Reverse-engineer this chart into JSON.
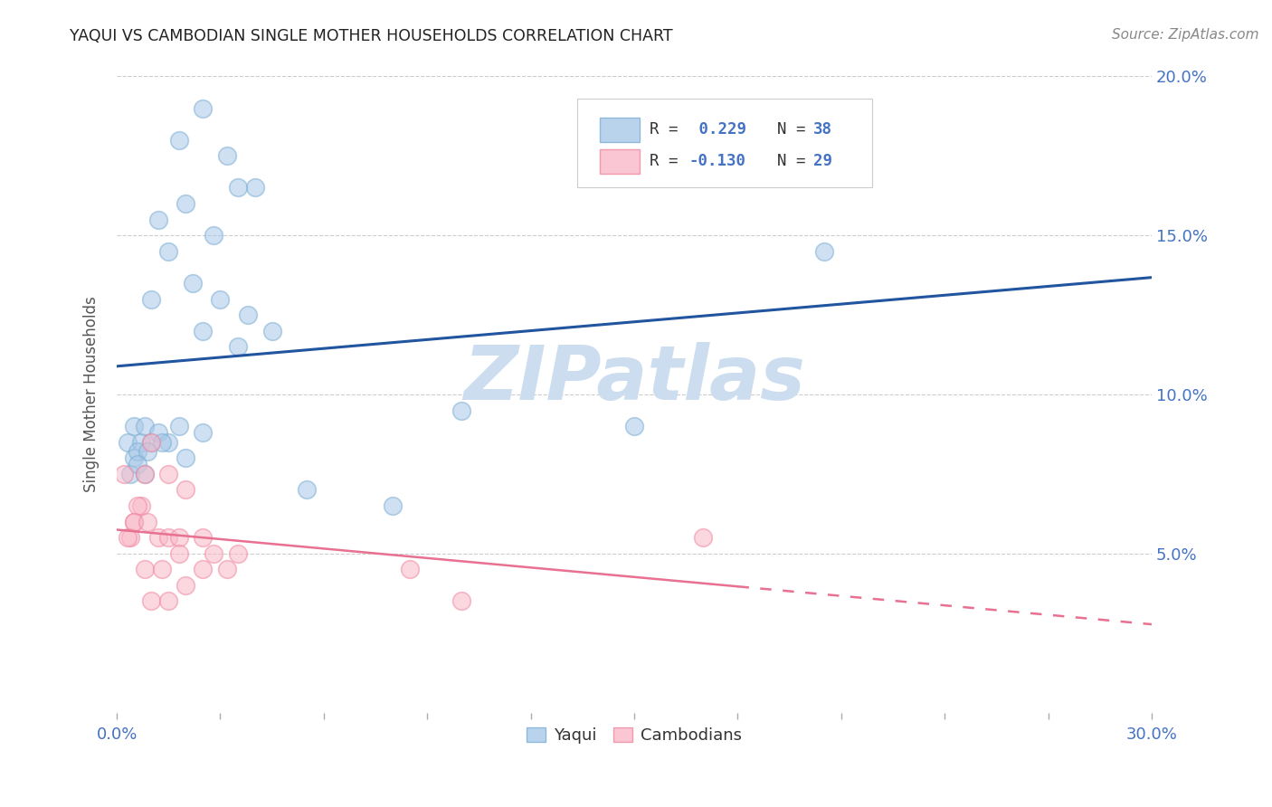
{
  "title": "YAQUI VS CAMBODIAN SINGLE MOTHER HOUSEHOLDS CORRELATION CHART",
  "source": "Source: ZipAtlas.com",
  "ylabel": "Single Mother Households",
  "yaqui_R": 0.229,
  "yaqui_N": 38,
  "cambodian_R": -0.13,
  "cambodian_N": 29,
  "x_min": 0.0,
  "x_max": 30.0,
  "y_min": 0.0,
  "y_max": 20.0,
  "yticks": [
    5.0,
    10.0,
    15.0,
    20.0
  ],
  "xticks_labels": [
    "0.0%",
    "30.0%"
  ],
  "xticks_vals": [
    0.0,
    30.0
  ],
  "blue_color": "#a8c8e8",
  "blue_edge": "#7baed4",
  "pink_color": "#f9b8c8",
  "pink_edge": "#f087a0",
  "trend_blue": "#2155a0",
  "trend_pink": "#e87090",
  "yaqui_x": [
    0.5,
    1.8,
    2.5,
    3.2,
    4.0,
    1.2,
    2.0,
    2.8,
    3.5,
    1.5,
    2.2,
    3.0,
    3.8,
    1.0,
    2.5,
    3.5,
    4.5,
    0.3,
    0.7,
    0.5,
    0.8,
    1.0,
    1.2,
    0.6,
    0.9,
    1.5,
    2.0,
    1.3,
    1.8,
    2.5,
    0.4,
    0.6,
    0.8,
    5.5,
    8.0,
    10.0,
    15.0,
    20.5
  ],
  "yaqui_y": [
    9.0,
    18.0,
    19.0,
    17.5,
    16.5,
    15.5,
    16.0,
    15.0,
    16.5,
    14.5,
    13.5,
    13.0,
    12.5,
    13.0,
    12.0,
    11.5,
    12.0,
    8.5,
    8.5,
    8.0,
    9.0,
    8.5,
    8.8,
    8.2,
    8.2,
    8.5,
    8.0,
    8.5,
    9.0,
    8.8,
    7.5,
    7.8,
    7.5,
    7.0,
    6.5,
    9.5,
    9.0,
    14.5
  ],
  "cambodian_x": [
    0.2,
    0.5,
    0.4,
    0.7,
    0.6,
    0.8,
    1.0,
    0.3,
    0.5,
    0.9,
    1.2,
    1.5,
    0.8,
    1.8,
    2.5,
    1.5,
    2.0,
    2.8,
    3.5,
    1.3,
    1.8,
    2.5,
    3.2,
    1.0,
    1.5,
    2.0,
    8.5,
    17.0,
    10.0
  ],
  "cambodian_y": [
    7.5,
    6.0,
    5.5,
    6.5,
    6.5,
    7.5,
    8.5,
    5.5,
    6.0,
    6.0,
    5.5,
    5.5,
    4.5,
    5.5,
    5.5,
    7.5,
    7.0,
    5.0,
    5.0,
    4.5,
    5.0,
    4.5,
    4.5,
    3.5,
    3.5,
    4.0,
    4.5,
    5.5,
    3.5
  ],
  "background_color": "#ffffff",
  "watermark_text": "ZIPatlas",
  "watermark_color": "#ccddf0"
}
